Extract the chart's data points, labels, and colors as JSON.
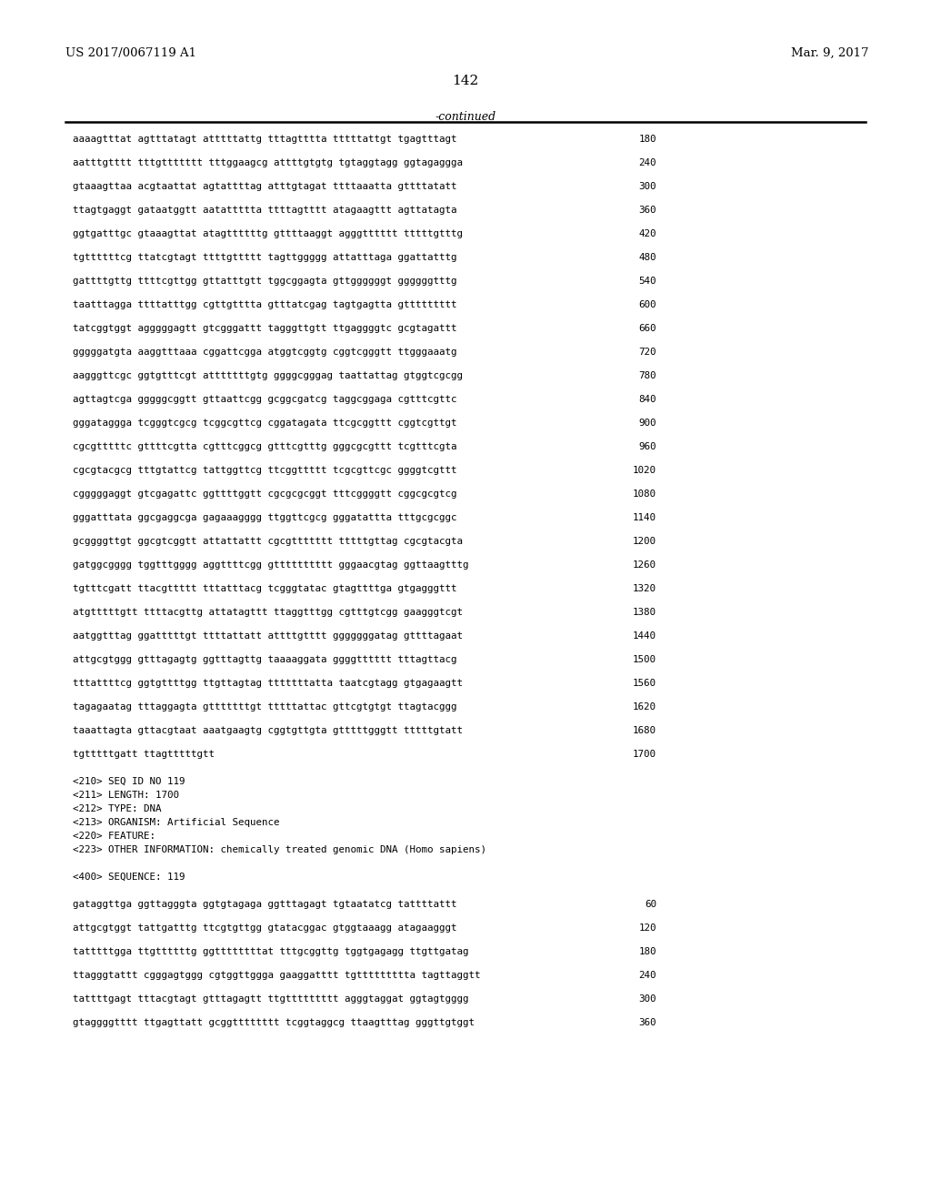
{
  "header_left": "US 2017/0067119 A1",
  "header_right": "Mar. 9, 2017",
  "page_number": "142",
  "continued_label": "-continued",
  "background_color": "#ffffff",
  "text_color": "#000000",
  "sequence_lines": [
    {
      "seq": "aaaagtttat agtttatagt atttttattg tttagtttta tttttattgt tgagtttagt",
      "num": "180"
    },
    {
      "seq": "aatttgtttt tttgttttttt tttggaagcg attttgtgtg tgtaggtagg ggtagaggga",
      "num": "240"
    },
    {
      "seq": "gtaaagttaa acgtaattat agtattttag atttgtagat ttttaaatta gttttatatt",
      "num": "300"
    },
    {
      "seq": "ttagtgaggt gataatggtt aatattttta ttttagtttt atagaagttt agttatagta",
      "num": "360"
    },
    {
      "seq": "ggtgatttgc gtaaagttat atagttttttg gttttaaggt agggtttttt tttttgtttg",
      "num": "420"
    },
    {
      "seq": "tgttttttcg ttatcgtagt ttttgttttt tagttggggg attatttaga ggattatttg",
      "num": "480"
    },
    {
      "seq": "gattttgttg ttttcgttgg gttatttgtt tggcggagta gttggggggt ggggggtttg",
      "num": "540"
    },
    {
      "seq": "taatttagga ttttatttgg cgttgtttta gtttatcgag tagtgagtta gttttttttt",
      "num": "600"
    },
    {
      "seq": "tatcggtggt agggggagtt gtcgggattt tagggttgtt ttgaggggtc gcgtagattt",
      "num": "660"
    },
    {
      "seq": "gggggatgta aaggtttaaa cggattcgga atggtcggtg cggtcgggtt ttgggaaatg",
      "num": "720"
    },
    {
      "seq": "aagggttcgc ggtgtttcgt atttttttgtg ggggcgggag taattattag gtggtcgcgg",
      "num": "780"
    },
    {
      "seq": "agttagtcga gggggcggtt gttaattcgg gcggcgatcg taggcggaga cgtttcgttc",
      "num": "840"
    },
    {
      "seq": "gggataggga tcgggtcgcg tcggcgttcg cggatagata ttcgcggttt cggtcgttgt",
      "num": "900"
    },
    {
      "seq": "cgcgtttttc gttttcgtta cgtttcggcg gtttcgtttg gggcgcgttt tcgtttcgta",
      "num": "960"
    },
    {
      "seq": "cgcgtacgcg tttgtattcg tattggttcg ttcggttttt tcgcgttcgc ggggtcgttt",
      "num": "1020"
    },
    {
      "seq": "cgggggaggt gtcgagattc ggttttggtt cgcgcgcggt tttcggggtt cggcgcgtcg",
      "num": "1080"
    },
    {
      "seq": "gggatttata ggcgaggcga gagaaagggg ttggttcgcg gggatattta tttgcgcggc",
      "num": "1140"
    },
    {
      "seq": "gcggggttgt ggcgtcggtt attattattt cgcgttttttt tttttgttag cgcgtacgta",
      "num": "1200"
    },
    {
      "seq": "gatggcgggg tggtttgggg aggttttcgg gtttttttttt gggaacgtag ggttaagtttg",
      "num": "1260"
    },
    {
      "seq": "tgtttcgatt ttacgttttt tttatttacg tcgggtatac gtagttttga gtgagggttt",
      "num": "1320"
    },
    {
      "seq": "atgtttttgtt ttttacgttg attatagttt ttaggtttgg cgtttgtcgg gaagggtcgt",
      "num": "1380"
    },
    {
      "seq": "aatggtttag ggatttttgt ttttattatt attttgtttt gggggggatag gttttagaat",
      "num": "1440"
    },
    {
      "seq": "attgcgtggg gtttagagtg ggtttagttg taaaaggata ggggtttttt tttagttacg",
      "num": "1500"
    },
    {
      "seq": "tttattttcg ggtgttttgg ttgttagtag tttttttatta taatcgtagg gtgagaagtt",
      "num": "1560"
    },
    {
      "seq": "tagagaatag tttaggagta gtttttttgt tttttattac gttcgtgtgt ttagtacggg",
      "num": "1620"
    },
    {
      "seq": "taaattagta gttacgtaat aaatgaagtg cggtgttgta gtttttgggtt tttttgtatt",
      "num": "1680"
    },
    {
      "seq": "tgtttttgatt ttagtttttgtt",
      "num": "1700"
    }
  ],
  "metadata_lines": [
    "<210> SEQ ID NO 119",
    "<211> LENGTH: 1700",
    "<212> TYPE: DNA",
    "<213> ORGANISM: Artificial Sequence",
    "<220> FEATURE:",
    "<223> OTHER INFORMATION: chemically treated genomic DNA (Homo sapiens)"
  ],
  "seq400_label": "<400> SEQUENCE: 119",
  "bottom_sequence_lines": [
    {
      "seq": "gataggttga ggttagggta ggtgtagaga ggtttagagt tgtaatatcg tattttattt",
      "num": "60"
    },
    {
      "seq": "attgcgtggt tattgatttg ttcgtgttgg gtatacggac gtggtaaagg atagaagggt",
      "num": "120"
    },
    {
      "seq": "tatttttgga ttgttttttg ggttttttttat tttgcggttg tggtgagagg ttgttgatag",
      "num": "180"
    },
    {
      "seq": "ttagggtattt cgggagtggg cgtggttggga gaaggatttt tgttttttttta tagttaggtt",
      "num": "240"
    },
    {
      "seq": "tattttgagt tttacgtagt gtttagagtt ttgttttttttt agggtaggat ggtagtgggg",
      "num": "300"
    },
    {
      "seq": "gtaggggtttt ttgagttatt gcggtttttttt tcggtaggcg ttaagtttag gggttgtggt",
      "num": "360"
    }
  ]
}
